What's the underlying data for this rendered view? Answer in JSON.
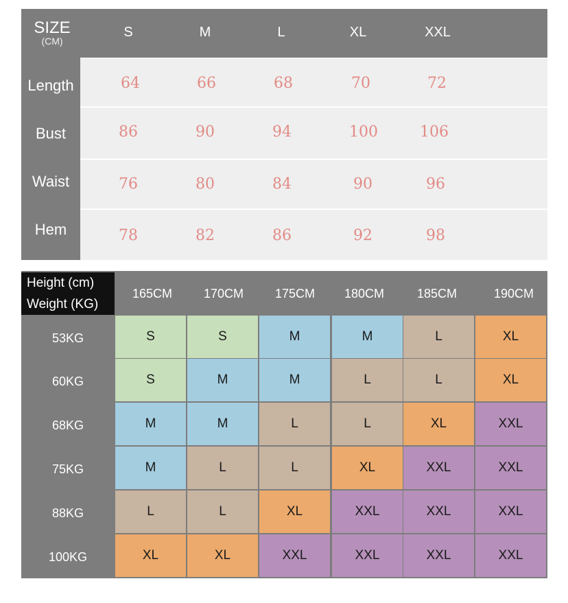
{
  "size_table": {
    "title": "SIZE",
    "unit": "(CM)",
    "sizes": [
      "S",
      "M",
      "L",
      "XL",
      "XXL"
    ],
    "rows": [
      {
        "label": "Length",
        "values": [
          "64",
          "66",
          "68",
          "70",
          "72"
        ]
      },
      {
        "label": "Bust",
        "values": [
          "86",
          "90",
          "94",
          "100",
          "106"
        ]
      },
      {
        "label": "Waist",
        "values": [
          "76",
          "80",
          "84",
          "90",
          "96"
        ]
      },
      {
        "label": "Hem",
        "values": [
          "78",
          "82",
          "86",
          "92",
          "98"
        ]
      }
    ]
  },
  "recommend_table": {
    "height_label": "Height (cm)",
    "weight_label": "Weight (KG)",
    "heights": [
      "165CM",
      "170CM",
      "175CM",
      "180CM",
      "185CM",
      "190CM"
    ],
    "rows": [
      {
        "weight": "53KG",
        "sizes": [
          "S",
          "S",
          "M",
          "M",
          "L",
          "XL"
        ]
      },
      {
        "weight": "60KG",
        "sizes": [
          "S",
          "M",
          "M",
          "L",
          "L",
          "XL"
        ]
      },
      {
        "weight": "68KG",
        "sizes": [
          "M",
          "M",
          "L",
          "L",
          "XL",
          "XXL"
        ]
      },
      {
        "weight": "75KG",
        "sizes": [
          "M",
          "L",
          "L",
          "XL",
          "XXL",
          "XXL"
        ]
      },
      {
        "weight": "88KG",
        "sizes": [
          "L",
          "L",
          "XL",
          "XXL",
          "XXL",
          "XXL"
        ]
      },
      {
        "weight": "100KG",
        "sizes": [
          "XL",
          "XL",
          "XXL",
          "XXL",
          "XXL",
          "XXL"
        ]
      }
    ],
    "colors": {
      "S": "#c7dfbb",
      "M": "#a4cde0",
      "L": "#c7b4a1",
      "XL": "#ecaa6c",
      "XXL": "#b690ba"
    }
  }
}
